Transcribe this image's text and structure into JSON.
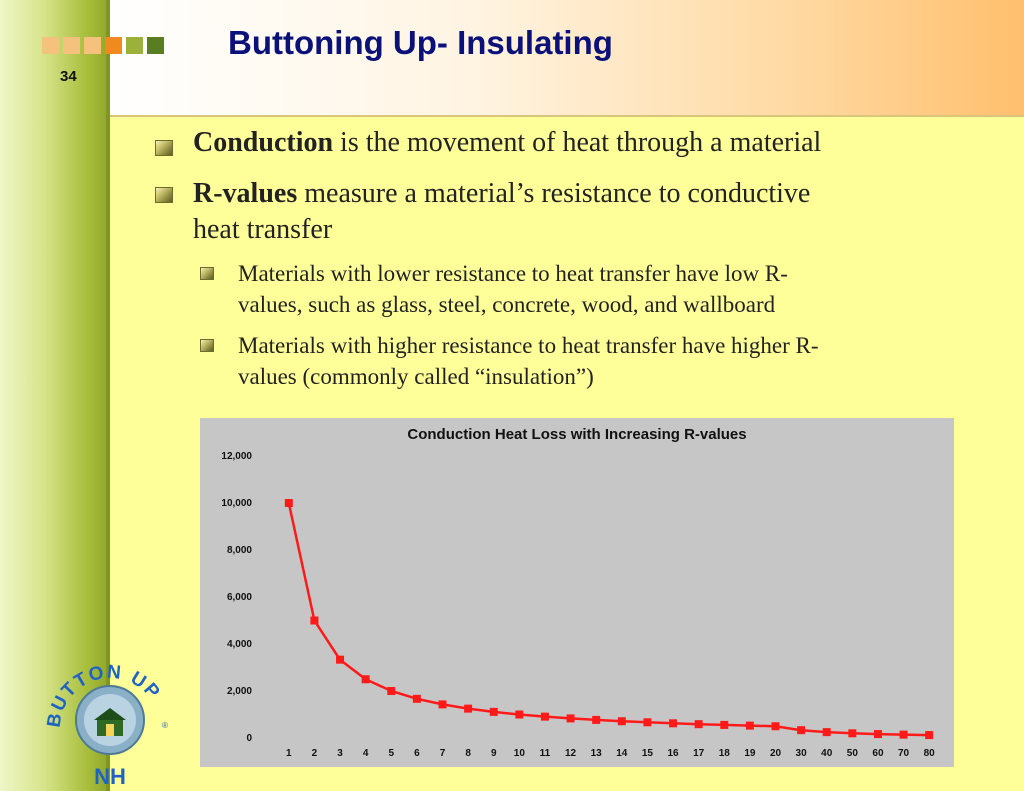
{
  "slide": {
    "title": "Buttoning Up- Insulating",
    "number": "34"
  },
  "colors": {
    "title": "#0a1178",
    "background": "#ffff99",
    "series_line": "#ff1a1a",
    "squares": [
      "#f5c27e",
      "#f5c27e",
      "#f5c27e",
      "#f08a1e",
      "#9cb13a",
      "#5a7d22"
    ]
  },
  "bullets": [
    {
      "bold": "Conduction",
      "text": " is the movement of heat through a material"
    },
    {
      "bold": "R-values",
      "text_line1": " measure a material’s resistance to conductive",
      "text_line2": "heat transfer"
    }
  ],
  "sub_bullets": [
    {
      "line1": "Materials with lower resistance to heat transfer have low R-",
      "line2": "values, such as glass, steel, concrete, wood, and wallboard"
    },
    {
      "line1": "Materials with higher resistance to heat transfer have higher R-",
      "line2": "values (commonly called “insulation”)"
    }
  ],
  "logo": {
    "arc_text": "BUTTON UP",
    "registered": "®",
    "state": "NH",
    "icon": "house-icon"
  },
  "chart_data": {
    "type": "line",
    "title": "Conduction Heat Loss with Increasing R-values",
    "xlabel": "",
    "ylabel": "",
    "categories": [
      "1",
      "2",
      "3",
      "4",
      "5",
      "6",
      "7",
      "8",
      "9",
      "10",
      "11",
      "12",
      "13",
      "14",
      "15",
      "16",
      "17",
      "18",
      "19",
      "20",
      "30",
      "40",
      "50",
      "60",
      "70",
      "80"
    ],
    "series": [
      {
        "values": [
          10000,
          5000,
          3333,
          2500,
          2000,
          1667,
          1429,
          1250,
          1111,
          1000,
          909,
          833,
          769,
          714,
          667,
          625,
          588,
          556,
          526,
          500,
          333,
          250,
          200,
          167,
          143,
          125
        ]
      }
    ],
    "ylim": [
      0,
      12000
    ],
    "yticks": [
      "0",
      "2,000",
      "4,000",
      "6,000",
      "8,000",
      "10,000",
      "12,000"
    ],
    "grid": false,
    "legend": "none",
    "marker": "square"
  }
}
